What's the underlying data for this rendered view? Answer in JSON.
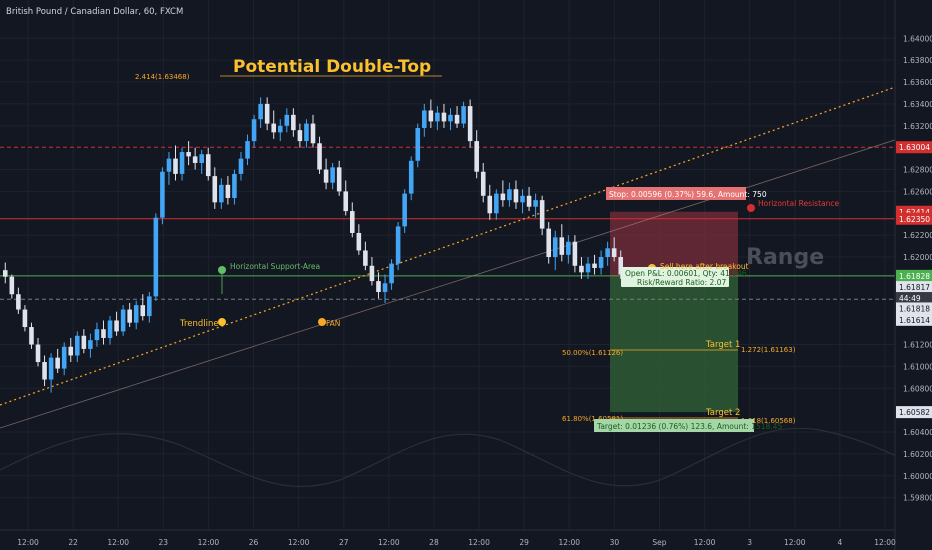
{
  "header": {
    "symbol_label": "British Pound / Canadian Dollar, 60, FXCM"
  },
  "colors": {
    "background": "#131722",
    "up_candle": "#42a5f5",
    "down_candle": "#e0e3eb",
    "resistance": "#d32f2f",
    "support": "#4caf50",
    "fib": "#f9a825",
    "stop_zone": "#b23a48",
    "target_zone": "#3d7a3a",
    "trend_dot": "#fbc02d"
  },
  "chart_data": {
    "type": "candlestick",
    "title": "Potential Double-Top",
    "y_axis": {
      "range": [
        1.5955,
        1.6435
      ],
      "ticks": [
        "1.64000",
        "1.63800",
        "1.63600",
        "1.63400",
        "1.63200",
        "1.62800",
        "1.62600",
        "1.62200",
        "1.62000",
        "1.61200",
        "1.61000",
        "1.60800",
        "1.60400",
        "1.60200",
        "1.60000",
        "1.59800"
      ]
    },
    "x_axis": {
      "ticks": [
        "12:00",
        "22",
        "12:00",
        "23",
        "12:00",
        "26",
        "12:00",
        "27",
        "12:00",
        "28",
        "12:00",
        "29",
        "12:00",
        "30",
        "Sep",
        "12:00",
        "3",
        "12:00",
        "4",
        "12:00"
      ]
    },
    "price_badges": [
      {
        "label": "1.63004",
        "price": 1.63004,
        "bg": "#d32f2f"
      },
      {
        "label": "1.62414",
        "price": 1.62414,
        "bg": "#d32f2f"
      },
      {
        "label": "1.62350",
        "price": 1.6235,
        "bg": "#d32f2f"
      },
      {
        "label": "1.61828",
        "price": 1.61828,
        "bg": "#4caf50"
      },
      {
        "label": "1.61817",
        "price": 1.61725,
        "bg": "#e0e3eb"
      },
      {
        "label": "44:49",
        "price": 1.61625,
        "bg": "#363a45"
      },
      {
        "label": "1.61818",
        "price": 1.6153,
        "bg": "#e0e3eb"
      },
      {
        "label": "1.61614",
        "price": 1.61426,
        "bg": "#e0e3eb"
      },
      {
        "label": "1.60582",
        "price": 1.60582,
        "bg": "#e0e3eb"
      }
    ],
    "horizontal_lines": [
      {
        "name": "Horizontal Resistance",
        "price": 1.6235,
        "style": "solid",
        "color": "#d32f2f"
      },
      {
        "name": "Horizontal Support-Area",
        "price": 1.61828,
        "style": "solid",
        "color": "#4caf50"
      },
      {
        "name": "top-dashed",
        "price": 1.63004,
        "style": "dashed",
        "color": "#d32f2f"
      },
      {
        "name": "mid-dashed",
        "price": 1.61614,
        "style": "dashed",
        "color": "#787b86"
      }
    ],
    "annotations": {
      "resistance_label": "Horizontal Resistance",
      "support_label": "Horizontal Support-Area",
      "trendline_label": "Trendline",
      "fan_label": "FAN",
      "range_label": "Range",
      "fib_top": "2.414(1.63468)",
      "fib_50": "50.00%(1.61126)",
      "fib_618": "61.80%(1.60581)",
      "fib_1272": "1.272(1.61163)",
      "fib_1618": "1.618(1.60568)",
      "target1": "Target 1",
      "target2": "Target 2"
    },
    "position": {
      "stop_text": "Stop: 0.00596 (0.37%) 59.6, Amount: 750",
      "open_text": "Open P&L: 0.00601, Qty: 41.946",
      "rr_text": "Risk/Reward Ratio: 2.07",
      "sell_text": "Sell here after breakout",
      "target_text": "Target: 0.01236 (0.76%) 123.6, Amount: 1518.45",
      "stop_price": 1.62414,
      "entry_price": 1.61818,
      "target_price": 1.60582
    },
    "candles": [
      [
        1.6188,
        1.6195,
        1.6176,
        1.6182
      ],
      [
        1.6182,
        1.6184,
        1.6162,
        1.6166
      ],
      [
        1.6166,
        1.6172,
        1.6148,
        1.6152
      ],
      [
        1.6152,
        1.6156,
        1.6132,
        1.6136
      ],
      [
        1.6136,
        1.614,
        1.6116,
        1.612
      ],
      [
        1.612,
        1.6126,
        1.61,
        1.6104
      ],
      [
        1.6104,
        1.611,
        1.6082,
        1.6088
      ],
      [
        1.6088,
        1.6112,
        1.6076,
        1.6108
      ],
      [
        1.6108,
        1.6116,
        1.6094,
        1.6098
      ],
      [
        1.6098,
        1.6122,
        1.6092,
        1.6118
      ],
      [
        1.6118,
        1.6126,
        1.6104,
        1.611
      ],
      [
        1.611,
        1.6132,
        1.6104,
        1.6128
      ],
      [
        1.6128,
        1.6134,
        1.6112,
        1.6116
      ],
      [
        1.6116,
        1.613,
        1.6108,
        1.6124
      ],
      [
        1.6124,
        1.614,
        1.6118,
        1.6134
      ],
      [
        1.6134,
        1.6142,
        1.612,
        1.6126
      ],
      [
        1.6126,
        1.6146,
        1.612,
        1.6142
      ],
      [
        1.6142,
        1.615,
        1.6128,
        1.6132
      ],
      [
        1.6132,
        1.6156,
        1.6128,
        1.6152
      ],
      [
        1.6152,
        1.6158,
        1.6136,
        1.614
      ],
      [
        1.614,
        1.616,
        1.6134,
        1.6156
      ],
      [
        1.6156,
        1.6166,
        1.6142,
        1.6146
      ],
      [
        1.6146,
        1.6168,
        1.614,
        1.6164
      ],
      [
        1.6164,
        1.624,
        1.616,
        1.6236
      ],
      [
        1.6236,
        1.6282,
        1.623,
        1.6278
      ],
      [
        1.6278,
        1.6296,
        1.6266,
        1.629
      ],
      [
        1.629,
        1.6302,
        1.627,
        1.6276
      ],
      [
        1.6276,
        1.63,
        1.627,
        1.6296
      ],
      [
        1.6296,
        1.6306,
        1.6284,
        1.6292
      ],
      [
        1.6292,
        1.63,
        1.628,
        1.6286
      ],
      [
        1.6286,
        1.6298,
        1.6276,
        1.6294
      ],
      [
        1.6294,
        1.63,
        1.627,
        1.6274
      ],
      [
        1.6274,
        1.6282,
        1.6244,
        1.625
      ],
      [
        1.625,
        1.6272,
        1.6244,
        1.6266
      ],
      [
        1.6266,
        1.6274,
        1.6248,
        1.6254
      ],
      [
        1.6254,
        1.628,
        1.6248,
        1.6276
      ],
      [
        1.6276,
        1.6296,
        1.627,
        1.629
      ],
      [
        1.629,
        1.6312,
        1.6284,
        1.6306
      ],
      [
        1.6306,
        1.633,
        1.63,
        1.6326
      ],
      [
        1.6326,
        1.6346,
        1.6318,
        1.634
      ],
      [
        1.634,
        1.6346,
        1.6316,
        1.6322
      ],
      [
        1.6322,
        1.6334,
        1.6308,
        1.6314
      ],
      [
        1.6314,
        1.6326,
        1.6306,
        1.632
      ],
      [
        1.632,
        1.6336,
        1.6314,
        1.633
      ],
      [
        1.633,
        1.6336,
        1.631,
        1.6316
      ],
      [
        1.6316,
        1.6322,
        1.63,
        1.6306
      ],
      [
        1.6306,
        1.6326,
        1.63,
        1.6322
      ],
      [
        1.6322,
        1.633,
        1.63,
        1.6304
      ],
      [
        1.6304,
        1.631,
        1.6276,
        1.628
      ],
      [
        1.628,
        1.629,
        1.6262,
        1.6268
      ],
      [
        1.6268,
        1.6286,
        1.6262,
        1.6282
      ],
      [
        1.6282,
        1.6288,
        1.6256,
        1.626
      ],
      [
        1.626,
        1.627,
        1.6238,
        1.6242
      ],
      [
        1.6242,
        1.625,
        1.6218,
        1.6222
      ],
      [
        1.6222,
        1.623,
        1.6202,
        1.6206
      ],
      [
        1.6206,
        1.6214,
        1.6188,
        1.6192
      ],
      [
        1.6192,
        1.62,
        1.6174,
        1.6178
      ],
      [
        1.6178,
        1.6186,
        1.6162,
        1.6168
      ],
      [
        1.6168,
        1.6184,
        1.6158,
        1.6176
      ],
      [
        1.6176,
        1.6198,
        1.617,
        1.6194
      ],
      [
        1.6194,
        1.6232,
        1.6188,
        1.6228
      ],
      [
        1.6228,
        1.6262,
        1.6222,
        1.6258
      ],
      [
        1.6258,
        1.6292,
        1.6252,
        1.6288
      ],
      [
        1.6288,
        1.6322,
        1.6282,
        1.6318
      ],
      [
        1.6318,
        1.634,
        1.631,
        1.6334
      ],
      [
        1.6334,
        1.6344,
        1.6318,
        1.6324
      ],
      [
        1.6324,
        1.6338,
        1.6316,
        1.6332
      ],
      [
        1.6332,
        1.634,
        1.6318,
        1.6324
      ],
      [
        1.6324,
        1.6336,
        1.6316,
        1.633
      ],
      [
        1.633,
        1.6338,
        1.6318,
        1.6322
      ],
      [
        1.6322,
        1.6342,
        1.6318,
        1.6338
      ],
      [
        1.6338,
        1.6344,
        1.63,
        1.6306
      ],
      [
        1.6306,
        1.6316,
        1.6272,
        1.6278
      ],
      [
        1.6278,
        1.6286,
        1.625,
        1.6256
      ],
      [
        1.6256,
        1.6266,
        1.6234,
        1.624
      ],
      [
        1.624,
        1.6262,
        1.6234,
        1.6258
      ],
      [
        1.6258,
        1.627,
        1.6246,
        1.6252
      ],
      [
        1.6252,
        1.6268,
        1.6246,
        1.6262
      ],
      [
        1.6262,
        1.627,
        1.6244,
        1.625
      ],
      [
        1.625,
        1.6262,
        1.624,
        1.6256
      ],
      [
        1.6256,
        1.6264,
        1.6242,
        1.6246
      ],
      [
        1.6246,
        1.6258,
        1.6236,
        1.6252
      ],
      [
        1.6252,
        1.6256,
        1.622,
        1.6226
      ],
      [
        1.6226,
        1.6232,
        1.6194,
        1.62
      ],
      [
        1.62,
        1.6224,
        1.6188,
        1.6218
      ],
      [
        1.6218,
        1.623,
        1.6196,
        1.6202
      ],
      [
        1.6202,
        1.622,
        1.6194,
        1.6214
      ],
      [
        1.6214,
        1.622,
        1.6186,
        1.6192
      ],
      [
        1.6192,
        1.62,
        1.618,
        1.6186
      ],
      [
        1.6186,
        1.62,
        1.618,
        1.6194
      ],
      [
        1.6194,
        1.6202,
        1.6184,
        1.619
      ],
      [
        1.619,
        1.6206,
        1.6184,
        1.62
      ],
      [
        1.62,
        1.6214,
        1.6192,
        1.6208
      ],
      [
        1.6208,
        1.6218,
        1.6196,
        1.62
      ],
      [
        1.62,
        1.6206,
        1.618,
        1.6184
      ]
    ]
  }
}
